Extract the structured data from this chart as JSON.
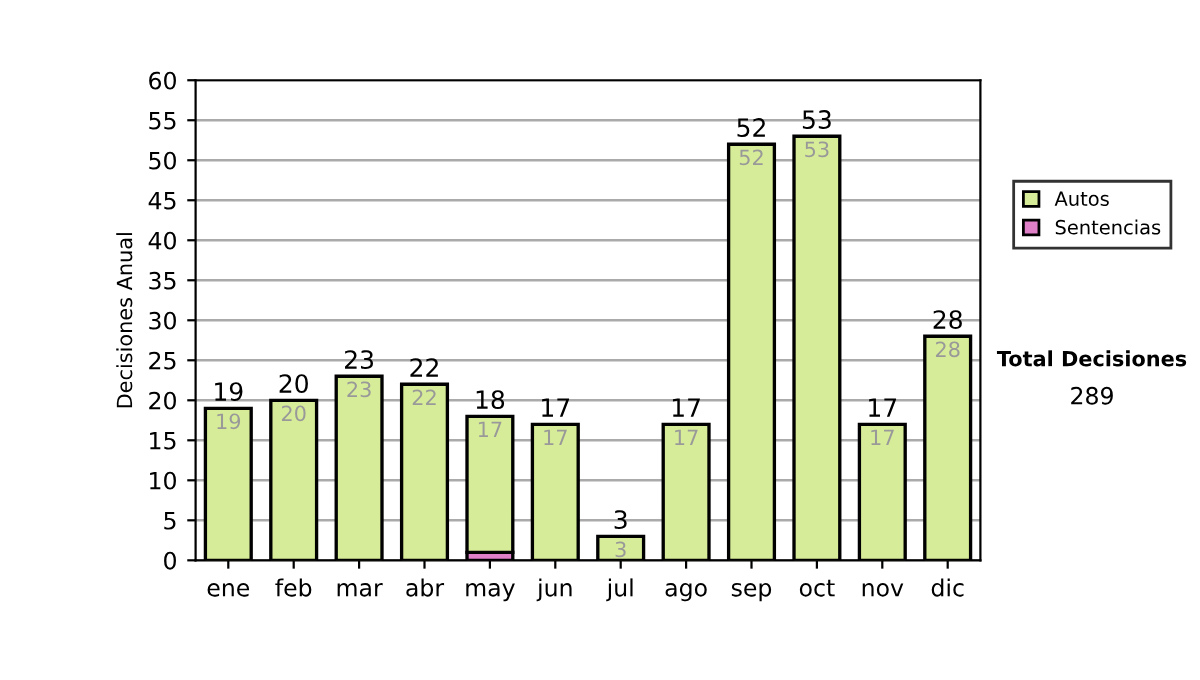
{
  "chart_data": {
    "type": "bar",
    "stacked": true,
    "ylabel": "Decisiones Anual",
    "categories": [
      "ene",
      "feb",
      "mar",
      "abr",
      "may",
      "jun",
      "jul",
      "ago",
      "sep",
      "oct",
      "nov",
      "dic"
    ],
    "series": [
      {
        "name": "Sentencias",
        "color": "#e080c8",
        "values": [
          0,
          0,
          0,
          0,
          1,
          0,
          0,
          0,
          0,
          0,
          0,
          0
        ]
      },
      {
        "name": "Autos",
        "color": "#d6ec98",
        "values": [
          19,
          20,
          23,
          22,
          17,
          17,
          3,
          17,
          52,
          53,
          17,
          28
        ],
        "value_labels": [
          "19",
          "20",
          "23",
          "22",
          "17",
          "17",
          "3",
          "17",
          "52",
          "53",
          "17",
          "28"
        ]
      }
    ],
    "totals": [
      "19",
      "20",
      "23",
      "22",
      "18",
      "17",
      "3",
      "17",
      "52",
      "53",
      "17",
      "28"
    ],
    "ylim": [
      0,
      60
    ],
    "yticks": [
      0,
      5,
      10,
      15,
      20,
      25,
      30,
      35,
      40,
      45,
      50,
      55,
      60
    ],
    "grid": "y",
    "legend": "right",
    "annotations": [
      "Total Decisiones",
      "289"
    ]
  }
}
